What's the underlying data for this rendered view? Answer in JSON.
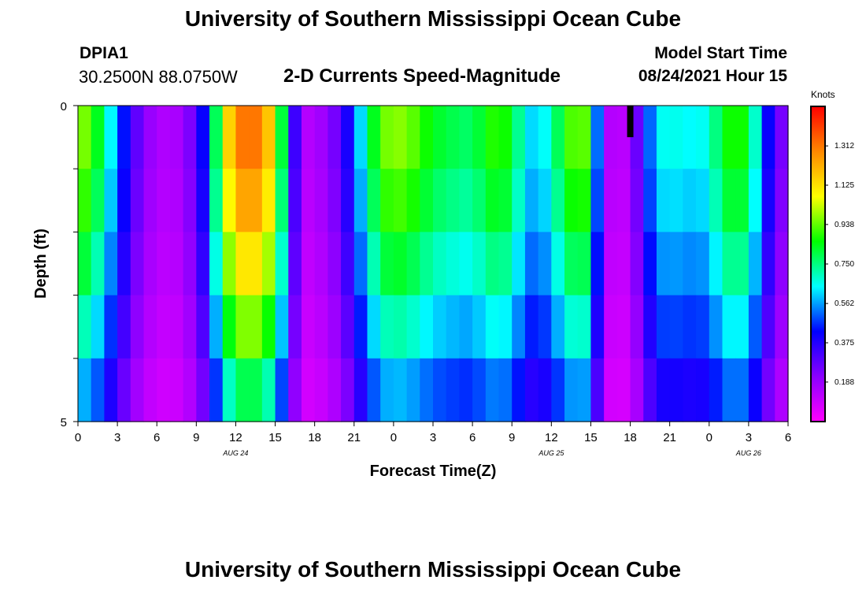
{
  "header": {
    "title_top": "University of Southern Mississippi Ocean Cube",
    "title_bottom": "University of Southern Mississippi Ocean Cube",
    "station_id": "DPIA1",
    "station_coords": "30.2500N  88.0750W",
    "chart_title": "2-D Currents Speed-Magnitude",
    "model_start_label": "Model Start Time",
    "model_start_value": "08/24/2021 Hour 15"
  },
  "chart_data": {
    "type": "heatmap",
    "title": "2-D Currents Speed-Magnitude",
    "xlabel": "Forecast Time(Z)",
    "ylabel": "Depth (ft)",
    "colorbar_label": "Knots",
    "colorbar_ticks": [
      "0.188",
      "0.375",
      "0.562",
      "0.750",
      "0.938",
      "1.125",
      "1.312"
    ],
    "colorbar_range": [
      0,
      1.5
    ],
    "colormap": [
      "#ff00ff",
      "#8a00ff",
      "#0000ff",
      "#00ffff",
      "#00ff00",
      "#ffff00",
      "#ff8800",
      "#ff0000"
    ],
    "x_tick_labels": [
      "0",
      "3",
      "6",
      "9",
      "12",
      "15",
      "18",
      "21",
      "0",
      "3",
      "6",
      "9",
      "12",
      "15",
      "18",
      "21",
      "0",
      "3",
      "6"
    ],
    "date_labels": [
      {
        "text": "AUG  24",
        "hour": 12
      },
      {
        "text": "AUG  25",
        "hour": 36
      },
      {
        "text": "AUG  26",
        "hour": 51
      }
    ],
    "y_tick_labels": [
      "0",
      "5"
    ],
    "x_range_hours": [
      0,
      54
    ],
    "depth_range_ft": [
      0,
      5
    ],
    "depth_levels_ft": [
      0,
      1,
      2,
      3,
      4,
      5
    ],
    "hours": [
      0,
      1,
      2,
      3,
      4,
      5,
      6,
      7,
      8,
      9,
      10,
      11,
      12,
      13,
      14,
      15,
      16,
      17,
      18,
      19,
      20,
      21,
      22,
      23,
      24,
      25,
      26,
      27,
      28,
      29,
      30,
      31,
      32,
      33,
      34,
      35,
      36,
      37,
      38,
      39,
      40,
      41,
      42,
      43,
      44,
      45,
      46,
      47,
      48,
      49,
      50,
      51,
      52,
      53,
      54
    ],
    "surface_speed_knots": [
      1.0,
      0.95,
      0.75,
      0.55,
      0.35,
      0.22,
      0.16,
      0.14,
      0.18,
      0.3,
      0.55,
      1.05,
      1.3,
      1.38,
      1.3,
      1.1,
      0.55,
      0.13,
      0.15,
      0.2,
      0.3,
      0.5,
      0.75,
      0.95,
      1.0,
      0.98,
      0.92,
      0.85,
      0.82,
      0.8,
      0.78,
      0.88,
      0.92,
      0.85,
      0.65,
      0.6,
      0.72,
      0.88,
      1.0,
      0.9,
      0.16,
      0.12,
      0.14,
      0.4,
      0.65,
      0.68,
      0.66,
      0.65,
      0.68,
      0.85,
      0.92,
      0.85,
      0.55,
      0.3,
      0.2
    ],
    "depth_factor": [
      1.0,
      0.96,
      0.88,
      0.78,
      0.66,
      0.52
    ],
    "annotations": [
      {
        "type": "marker",
        "hour": 42,
        "depth_ft": [
          0,
          0.5
        ]
      }
    ]
  },
  "colors": {
    "marker": "#000000"
  }
}
